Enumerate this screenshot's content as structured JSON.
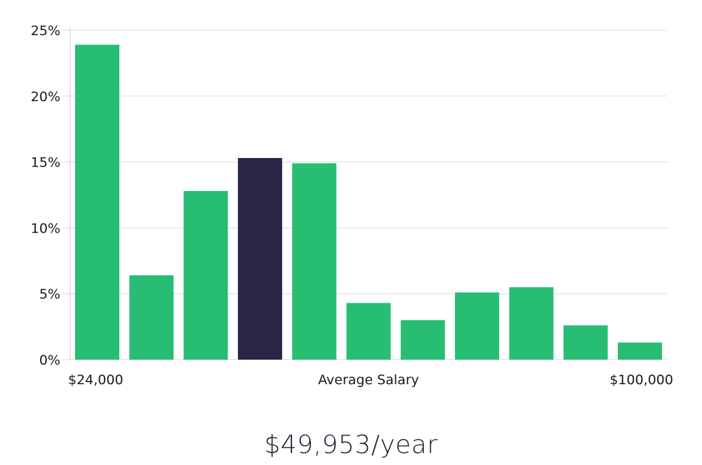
{
  "chart_data": {
    "type": "bar",
    "categories": [
      "1",
      "2",
      "3",
      "4",
      "5",
      "6",
      "7",
      "8",
      "9",
      "10",
      "11"
    ],
    "values": [
      23.9,
      6.4,
      12.8,
      15.3,
      14.9,
      4.3,
      3.0,
      5.1,
      5.5,
      2.6,
      1.3
    ],
    "highlight_index": 3,
    "ylim": [
      0,
      25
    ],
    "yticks": [
      "0%",
      "5%",
      "10%",
      "15%",
      "20%",
      "25%"
    ],
    "ytick_values": [
      0,
      5,
      10,
      15,
      20,
      25
    ],
    "x_left_label": "$24,000",
    "x_center_label": "Average Salary",
    "x_right_label": "$100,000",
    "grid": true,
    "colors": {
      "bar": "#27be74",
      "highlight": "#292546"
    }
  },
  "summary": {
    "average_salary": "$49,953/year"
  }
}
